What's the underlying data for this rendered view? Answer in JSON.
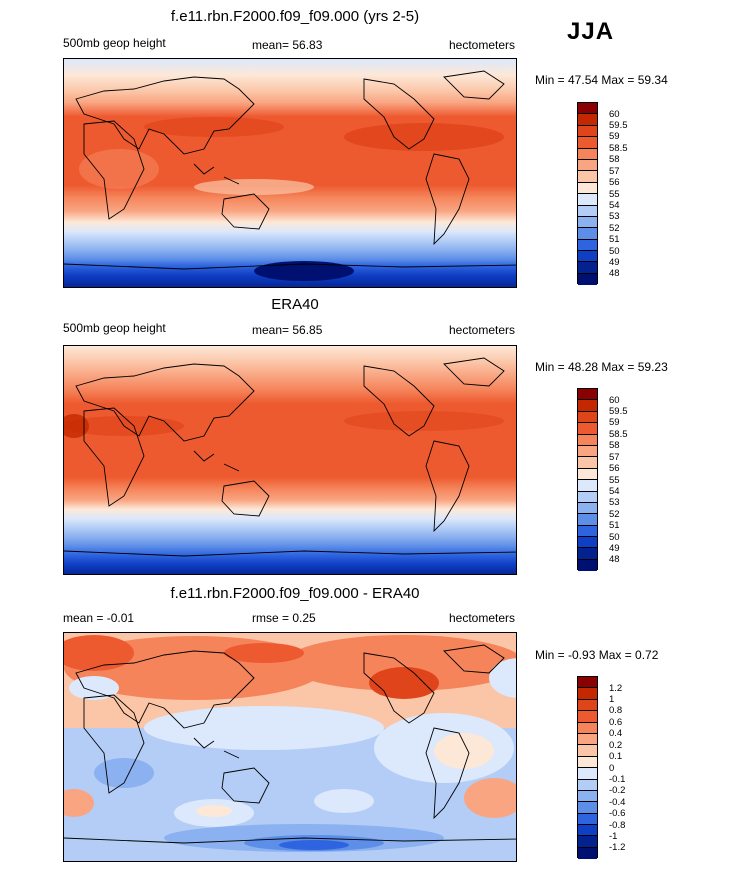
{
  "season": "JJA",
  "panels": [
    {
      "title": "f.e11.rbn.F2000.f09_f09.000 (yrs 2-5)",
      "left_label": "500mb geop height",
      "center_label": "mean=  56.83",
      "right_label": "hectometers",
      "minmax": "Min =  47.54 Max =  59.34",
      "levels": [
        "60",
        "59.5",
        "59",
        "58.5",
        "58",
        "57",
        "56",
        "55",
        "54",
        "53",
        "52",
        "51",
        "50",
        "49",
        "48"
      ],
      "colors": [
        "#8b0000",
        "#c42800",
        "#e0441a",
        "#ee5a30",
        "#f5845a",
        "#f9a582",
        "#fbc6a8",
        "#fde8d8",
        "#dce8fb",
        "#b3cdf6",
        "#8cb1f0",
        "#5d8ee8",
        "#2e64e0",
        "#0f3fc4",
        "#04228f",
        "#001070"
      ]
    },
    {
      "title": "ERA40",
      "left_label": "500mb geop height",
      "center_label": "mean=  56.85",
      "right_label": "hectometers",
      "minmax": "Min =  48.28 Max =  59.23",
      "levels": [
        "60",
        "59.5",
        "59",
        "58.5",
        "58",
        "57",
        "56",
        "55",
        "54",
        "53",
        "52",
        "51",
        "50",
        "49",
        "48"
      ],
      "colors": [
        "#8b0000",
        "#c42800",
        "#e0441a",
        "#ee5a30",
        "#f5845a",
        "#f9a582",
        "#fbc6a8",
        "#fde8d8",
        "#dce8fb",
        "#b3cdf6",
        "#8cb1f0",
        "#5d8ee8",
        "#2e64e0",
        "#0f3fc4",
        "#04228f",
        "#001070"
      ]
    },
    {
      "title": "f.e11.rbn.F2000.f09_f09.000 - ERA40",
      "left_label": "mean =  -0.01",
      "center_label": "rmse =   0.25",
      "right_label": "hectometers",
      "minmax": "Min =  -0.93 Max =   0.72",
      "levels": [
        "1.2",
        "1",
        "0.8",
        "0.6",
        "0.4",
        "0.2",
        "0.1",
        "0",
        "-0.1",
        "-0.2",
        "-0.4",
        "-0.6",
        "-0.8",
        "-1",
        "-1.2"
      ],
      "colors": [
        "#8b0000",
        "#c42800",
        "#e0441a",
        "#ee5a30",
        "#f5845a",
        "#f9a582",
        "#fbc6a8",
        "#fde8d8",
        "#dce8fb",
        "#b3cdf6",
        "#8cb1f0",
        "#5d8ee8",
        "#2e64e0",
        "#0f3fc4",
        "#04228f",
        "#001070"
      ]
    }
  ]
}
